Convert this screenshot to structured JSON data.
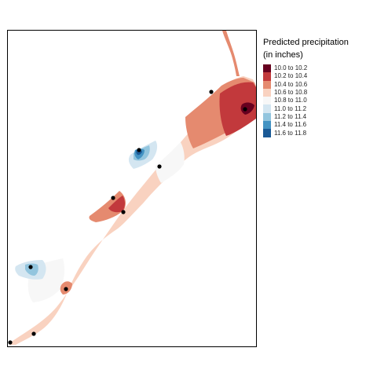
{
  "legend": {
    "title_line1": "Predicted precipitation",
    "title_line2": "(in inches)",
    "items": [
      {
        "label": "10.0 to 10.2",
        "color": "#67001f"
      },
      {
        "label": "10.2 to 10.4",
        "color": "#c2393c"
      },
      {
        "label": "10.4 to 10.6",
        "color": "#e58a6f"
      },
      {
        "label": "10.6 to 10.8",
        "color": "#f9d2c0"
      },
      {
        "label": "10.8 to 11.0",
        "color": "#f7f7f7"
      },
      {
        "label": "11.0 to 11.2",
        "color": "#d4e6f1"
      },
      {
        "label": "11.2 to 11.4",
        "color": "#92c5de"
      },
      {
        "label": "11.4 to 11.6",
        "color": "#4393c3"
      },
      {
        "label": "11.6 to 11.8",
        "color": "#1a5a96"
      }
    ]
  },
  "stations_count_note": null
}
